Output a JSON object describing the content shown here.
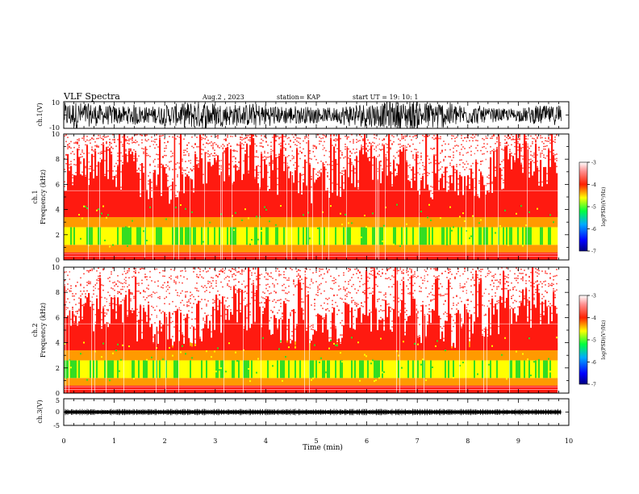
{
  "header": {
    "title": "VLF  Spectra",
    "date": "Aug.2  , 2023",
    "station": "station= KAP",
    "start": "start  UT  =    19: 10: 1"
  },
  "chart_data": [
    {
      "type": "line",
      "panel": "ch1-waveform",
      "ylabel": "ch.1(V)",
      "ylim": [
        -10,
        10
      ],
      "yticks": [
        "10",
        "-10"
      ],
      "xlim": [
        0,
        10
      ],
      "line_color": "#000000"
    },
    {
      "type": "heatmap",
      "panel": "ch1-spectrogram",
      "ylabel_line1": "ch.1",
      "ylabel_line2": "Frequency  (kHz)",
      "ylim": [
        0,
        10
      ],
      "yticks": [
        "0",
        "2",
        "4",
        "6",
        "8",
        "10"
      ],
      "xlim": [
        0,
        9.8
      ],
      "colorbar": {
        "label": "log(PSD)(V²/Hz)",
        "range": [
          -7,
          -3
        ],
        "ticks": [
          "-7",
          "-6",
          "-5",
          "-4",
          "-3"
        ]
      }
    },
    {
      "type": "heatmap",
      "panel": "ch2-spectrogram",
      "ylabel_line1": "ch.2",
      "ylabel_line2": "Frequency  (kHz)",
      "ylim": [
        0,
        10
      ],
      "yticks": [
        "0",
        "2",
        "4",
        "6",
        "8",
        "10"
      ],
      "xlim": [
        0,
        9.8
      ],
      "colorbar": {
        "label": "log(PSD)(V²/Hz)",
        "range": [
          -7,
          -3
        ],
        "ticks": [
          "-7",
          "-6",
          "-5",
          "-4",
          "-3"
        ]
      }
    },
    {
      "type": "line",
      "panel": "ch3-waveform",
      "ylabel": "ch.3(V)",
      "ylim": [
        -5,
        5
      ],
      "yticks": [
        "5",
        "0",
        "-5"
      ],
      "xlim": [
        0,
        10
      ],
      "line_color": "#000000"
    }
  ],
  "xaxis": {
    "label": "Time  (min)",
    "ticks": [
      "0",
      "1",
      "2",
      "3",
      "4",
      "5",
      "6",
      "7",
      "8",
      "9",
      "10"
    ],
    "range": [
      0,
      10
    ]
  },
  "colors": {
    "spec_high": "#ff1a10",
    "spec_mid": "#ff9a00",
    "spec_low": "#ffff00",
    "spec_band": "#33dd22",
    "spec_bg": "#ffffff"
  }
}
